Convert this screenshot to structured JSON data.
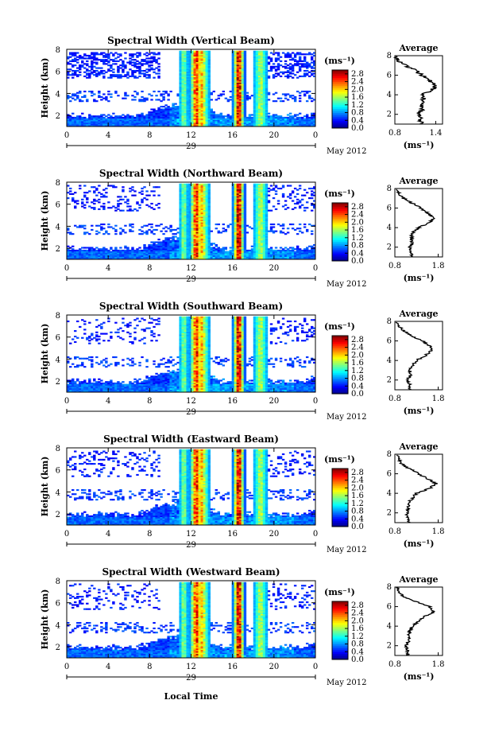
{
  "chart_data": {
    "type": "heatmap",
    "panels": [
      {
        "title": "Spectral Width (Vertical Beam)",
        "avg_xticks": [
          "0.8",
          "1.4"
        ],
        "avg_xlim": [
          0.8,
          1.5
        ]
      },
      {
        "title": "Spectral Width (Northward Beam)",
        "avg_xticks": [
          "0.8",
          "1.8"
        ],
        "avg_xlim": [
          0.8,
          1.9
        ]
      },
      {
        "title": "Spectral Width (Southward Beam)",
        "avg_xticks": [
          "0.8",
          "1.8"
        ],
        "avg_xlim": [
          0.8,
          1.9
        ]
      },
      {
        "title": "Spectral Width (Eastward Beam)",
        "avg_xticks": [
          "0.8",
          "1.8"
        ],
        "avg_xlim": [
          0.8,
          1.9
        ]
      },
      {
        "title": "Spectral Width (Westward Beam)",
        "avg_xticks": [
          "0.8",
          "1.8"
        ],
        "avg_xlim": [
          0.8,
          1.9
        ]
      }
    ],
    "ylabel": "Height (km)",
    "ylim": [
      1,
      8
    ],
    "yticks": [
      "2",
      "4",
      "6",
      "8"
    ],
    "xticks": [
      "0",
      "4",
      "8",
      "12",
      "16",
      "20",
      "0"
    ],
    "xlim": [
      0,
      24
    ],
    "date_day": "29",
    "date_month": "May 2012",
    "xlabel": "Local Time",
    "colorbar": {
      "unit": "(ms⁻¹)",
      "ticks": [
        "0.0",
        "0.4",
        "0.8",
        "1.2",
        "1.6",
        "2.0",
        "2.4",
        "2.8"
      ],
      "range": [
        0,
        3.0
      ]
    },
    "avg_title": "Average",
    "avg_xlabel": "(ms⁻¹)",
    "avg_yticks": [
      "2",
      "4",
      "6",
      "8"
    ],
    "average_profiles": [
      {
        "height": [
          1,
          1.5,
          2,
          2.5,
          3,
          3.5,
          4,
          4.5,
          5,
          5.5,
          6,
          6.5,
          7,
          7.5,
          8
        ],
        "value": [
          1.2,
          1.18,
          1.15,
          1.2,
          1.18,
          1.22,
          1.2,
          1.35,
          1.4,
          1.3,
          1.2,
          1.1,
          0.95,
          0.85,
          0.8
        ]
      },
      {
        "height": [
          1,
          1.5,
          2,
          2.5,
          3,
          3.5,
          4,
          4.5,
          5,
          5.5,
          6,
          6.5,
          7,
          7.5,
          8
        ],
        "value": [
          1.2,
          1.18,
          1.15,
          1.2,
          1.18,
          1.22,
          1.35,
          1.6,
          1.7,
          1.55,
          1.4,
          1.2,
          1.0,
          0.9,
          0.85
        ]
      },
      {
        "height": [
          1,
          1.5,
          2,
          2.5,
          3,
          3.5,
          4,
          4.5,
          5,
          5.5,
          6,
          6.5,
          7,
          7.5,
          8
        ],
        "value": [
          1.15,
          1.15,
          1.1,
          1.15,
          1.15,
          1.2,
          1.3,
          1.5,
          1.65,
          1.6,
          1.45,
          1.2,
          1.0,
          0.9,
          0.85
        ]
      },
      {
        "height": [
          1,
          1.5,
          2,
          2.5,
          3,
          3.5,
          4,
          4.5,
          5,
          5.5,
          6,
          6.5,
          7,
          7.5,
          8
        ],
        "value": [
          1.1,
          1.1,
          1.08,
          1.12,
          1.12,
          1.2,
          1.3,
          1.6,
          1.75,
          1.55,
          1.35,
          1.15,
          0.95,
          0.88,
          0.85
        ]
      },
      {
        "height": [
          1,
          1.5,
          2,
          2.5,
          3,
          3.5,
          4,
          4.5,
          5,
          5.5,
          6,
          6.5,
          7,
          7.5,
          8
        ],
        "value": [
          1.1,
          1.1,
          1.05,
          1.12,
          1.1,
          1.15,
          1.2,
          1.35,
          1.5,
          1.7,
          1.6,
          1.3,
          1.0,
          0.9,
          0.85
        ]
      }
    ]
  }
}
